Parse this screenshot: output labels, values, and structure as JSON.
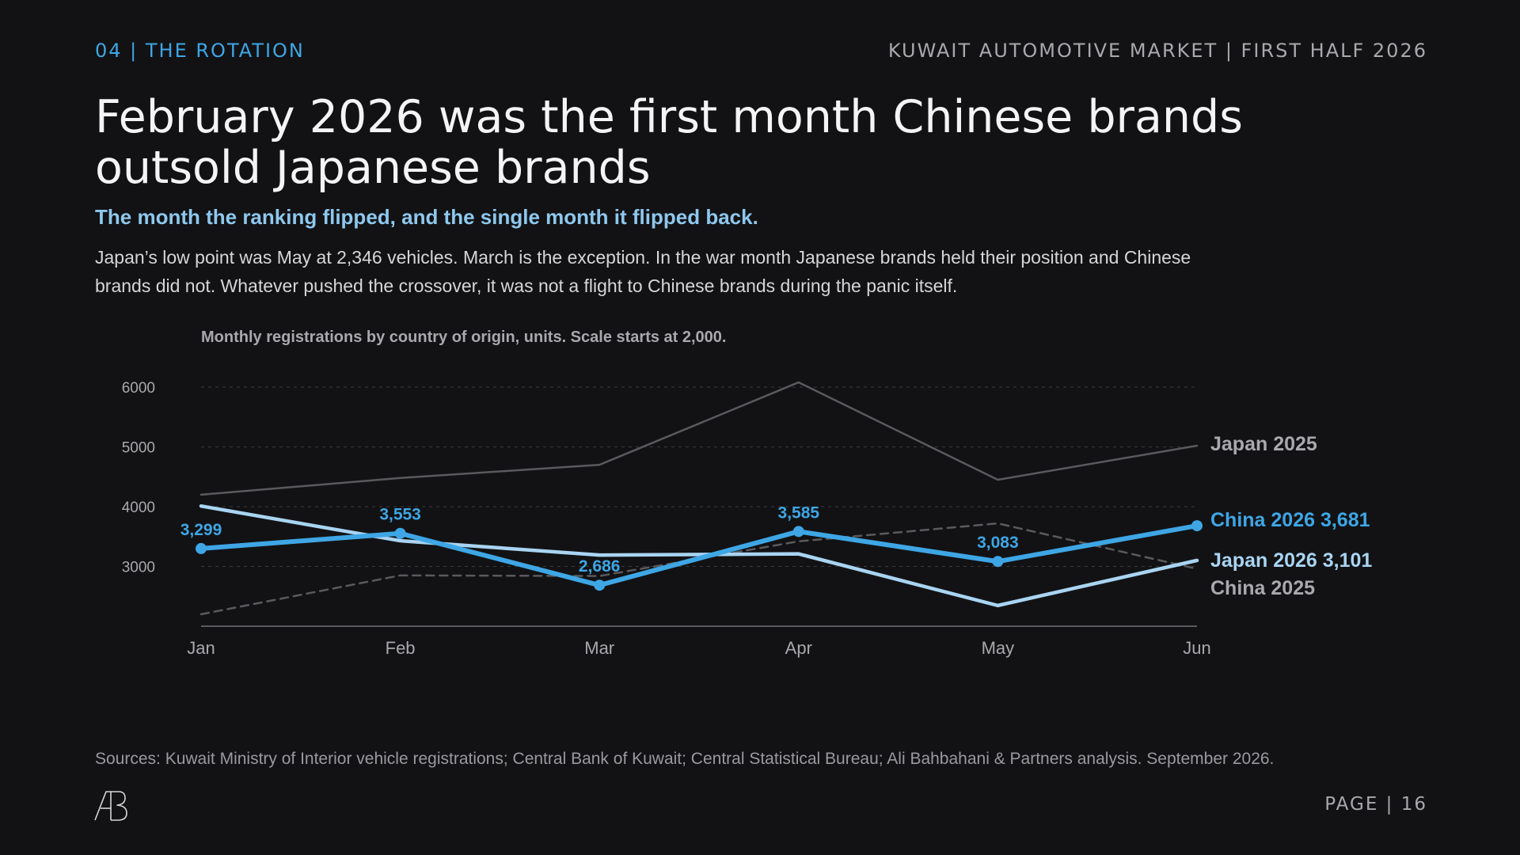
{
  "header": {
    "section_tag": "04 | THE ROTATION",
    "report_title": "KUWAIT AUTOMOTIVE MARKET | FIRST HALF 2026"
  },
  "headline": "February 2026 was the first month Chinese brands outsold Japanese brands",
  "subhead": "The month the ranking flipped, and the single month it flipped back.",
  "body": "Japan’s low point was May at 2,346 vehicles. March is the exception. In the war month Japanese brands held their position and Chinese brands did not. Whatever pushed the crossover, it was not a flight to Chinese brands during the panic itself.",
  "footer": {
    "sources": "Sources: Kuwait Ministry of Interior vehicle registrations; Central Bank of Kuwait; Central Statistical Bureau; Ali Bahbahani & Partners analysis. September 2026.",
    "page": "PAGE | 16",
    "logo_text": "AB"
  },
  "colors": {
    "background": "#121214",
    "accent": "#3ea6e5",
    "japan_2026": "#a9d4f2",
    "china_2026": "#3ea6e5",
    "prior_year": "#5a5a5e",
    "label_grey": "#a9a9ad"
  },
  "chart_data": {
    "type": "line",
    "title": "Monthly registrations by country of origin, units. Scale starts at 2,000.",
    "categories": [
      "Jan",
      "Feb",
      "Mar",
      "Apr",
      "May",
      "Jun"
    ],
    "ylim": [
      2000,
      6000
    ],
    "yticks": [
      3000,
      4000,
      5000,
      6000
    ],
    "grid": true,
    "legend": "direct labels at line ends",
    "series": [
      {
        "name": "Japan 2025",
        "values": [
          4200,
          4480,
          4700,
          6080,
          4450,
          5020
        ],
        "style": "solid",
        "end_label": "Japan 2025"
      },
      {
        "name": "China 2025",
        "values": [
          2200,
          2850,
          2840,
          3420,
          3720,
          2960
        ],
        "style": "dashed",
        "end_label": "China 2025"
      },
      {
        "name": "Japan 2026",
        "values": [
          4010,
          3430,
          3190,
          3210,
          2346,
          3101
        ],
        "style": "solid",
        "end_label": "Japan 2026 3,101"
      },
      {
        "name": "China 2026",
        "values": [
          3299,
          3553,
          2686,
          3585,
          3083,
          3681
        ],
        "style": "solid-bold-markers",
        "end_label": "China 2026 3,681",
        "point_labels": [
          "3,299",
          "3,553",
          "2,686",
          "3,585",
          "3,083",
          ""
        ]
      }
    ]
  }
}
